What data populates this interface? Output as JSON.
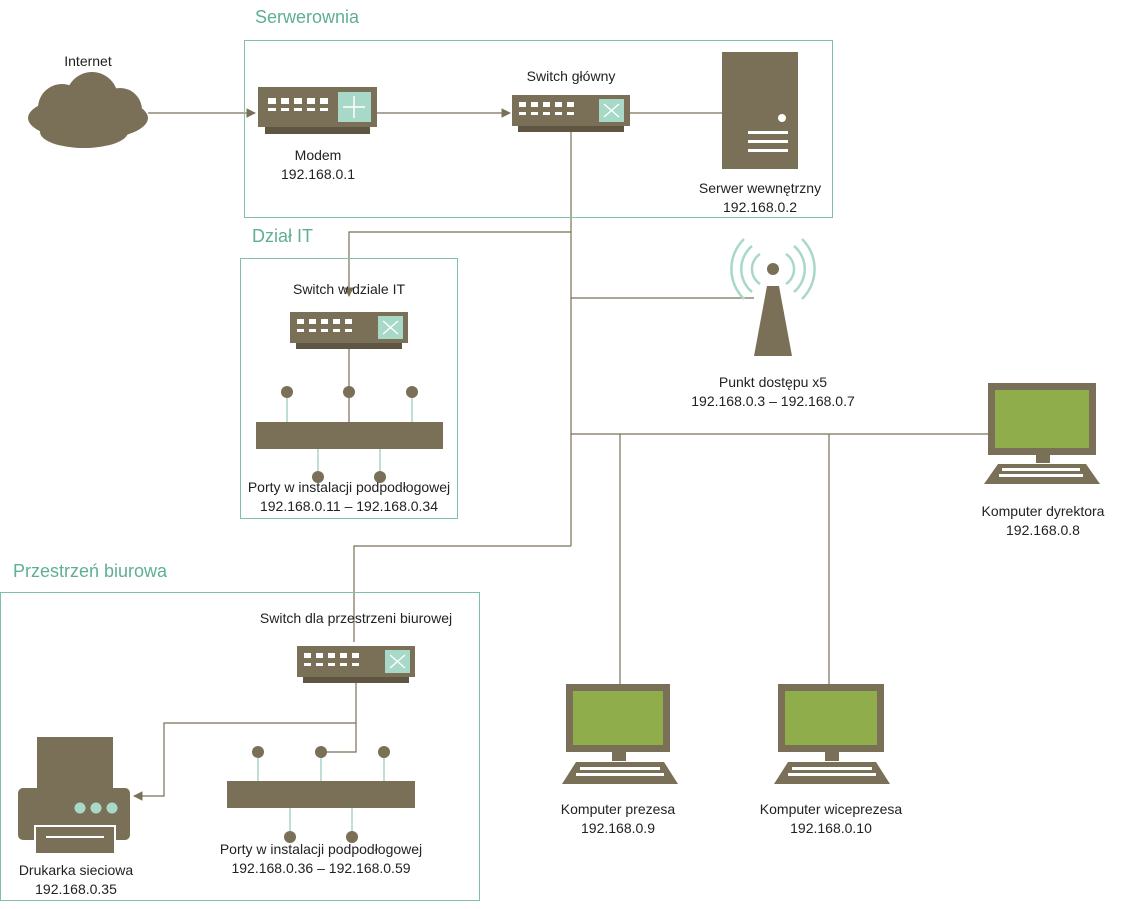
{
  "zones": {
    "server_room": "Serwerownia",
    "it_dept": "Dział IT",
    "office_space": "Przestrzeń biurowa"
  },
  "devices": {
    "internet": {
      "name": "Internet"
    },
    "modem": {
      "name": "Modem",
      "ip": "192.168.0.1"
    },
    "main_switch": {
      "name": "Switch główny"
    },
    "server": {
      "name": "Serwer wewnętrzny",
      "ip": "192.168.0.2"
    },
    "it_switch": {
      "name": "Switch w dziale IT"
    },
    "it_ports": {
      "name": "Porty w instalacji podpodłogowej",
      "ip": "192.168.0.11 – 192.168.0.34"
    },
    "access_point": {
      "name": "Punkt dostępu x5",
      "ip": "192.168.0.3 – 192.168.0.7"
    },
    "director_pc": {
      "name": "Komputer dyrektora",
      "ip": "192.168.0.8"
    },
    "office_switch": {
      "name": "Switch dla przestrzeni biurowej"
    },
    "printer": {
      "name": "Drukarka sieciowa",
      "ip": "192.168.0.35"
    },
    "office_ports": {
      "name": "Porty w instalacji podpodłogowej",
      "ip": "192.168.0.36 – 192.168.0.59"
    },
    "president_pc": {
      "name": "Komputer prezesa",
      "ip": "192.168.0.9"
    },
    "vice_president_pc": {
      "name": "Komputer wiceprezesa",
      "ip": "192.168.0.10"
    }
  },
  "colors": {
    "device": "#7a7058",
    "device_dark": "#5e5642",
    "screen": "#8fad4a",
    "accent": "#a8d8c8",
    "zone_border": "#7fbfac",
    "zone_title": "#5fae96",
    "wire": "#7a7058"
  }
}
